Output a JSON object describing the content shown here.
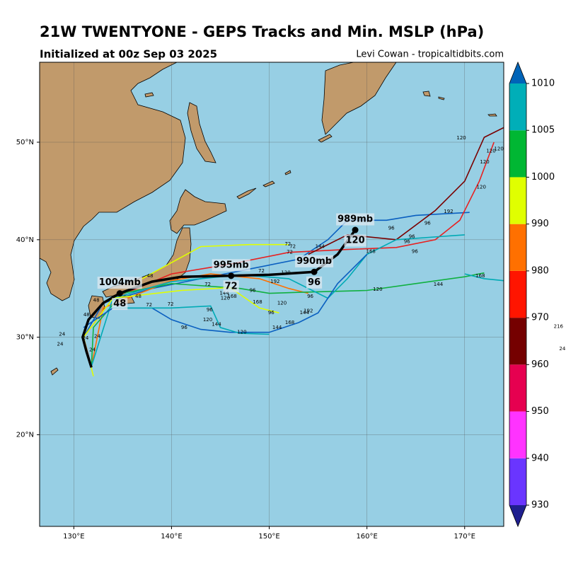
{
  "title": "21W TWENTYONE - GEPS Tracks and Min. MSLP (hPa)",
  "subtitle": "Initialized at 00z Sep 03 2025",
  "credit": "Levi Cowan - tropicaltidbits.com",
  "map": {
    "lonlim": [
      126.5,
      174
    ],
    "latlim": [
      10.6,
      58.2
    ],
    "lonticks": [
      {
        "value": 130,
        "label": "130°E"
      },
      {
        "value": 140,
        "label": "140°E"
      },
      {
        "value": 150,
        "label": "150°E"
      },
      {
        "value": 160,
        "label": "160°E"
      },
      {
        "value": 170,
        "label": "170°E"
      }
    ],
    "latticks": [
      {
        "value": 20,
        "label": "20°N"
      },
      {
        "value": 30,
        "label": "30°N"
      },
      {
        "value": 40,
        "label": "40°N"
      },
      {
        "value": 50,
        "label": "50°N"
      }
    ],
    "grid": true
  },
  "colorbar": {
    "levels": [
      930,
      940,
      950,
      960,
      970,
      980,
      990,
      1000,
      1005,
      1010
    ],
    "colors": [
      "#1f1f8f",
      "#6a35ff",
      "#ff33ff",
      "#e60050",
      "#750000",
      "#ff1500",
      "#ff7000",
      "#e0ff00",
      "#00b733",
      "#00aeb8",
      "#0064b8"
    ]
  },
  "ensemble_tracks": [
    {
      "color": "#0a5fc0",
      "lons": [
        131.8,
        131,
        133,
        138,
        143,
        148,
        153,
        156,
        158,
        162,
        165,
        170.5
      ],
      "lats": [
        26.8,
        30,
        33.5,
        35,
        36,
        37,
        38,
        40,
        42,
        42,
        42.5,
        42.8
      ]
    },
    {
      "color": "#e82020",
      "lons": [
        131.8,
        131,
        134,
        140,
        146,
        152,
        158,
        163,
        167,
        169.5,
        171.5,
        173
      ],
      "lats": [
        27,
        30,
        34,
        36.5,
        37.5,
        38.7,
        39,
        39.2,
        40,
        42,
        46,
        50
      ]
    },
    {
      "color": "#7a0000",
      "lons": [
        154,
        158,
        163,
        167,
        170,
        172,
        174
      ],
      "lats": [
        38.5,
        40.5,
        40,
        43,
        46,
        50.5,
        51.5
      ]
    },
    {
      "color": "#ff7000",
      "lons": [
        131.8,
        133,
        140,
        144,
        149,
        152,
        154
      ],
      "lats": [
        27,
        33,
        35.8,
        36.5,
        36,
        35,
        34.5
      ]
    },
    {
      "color": "#10b040",
      "lons": [
        131.8,
        132,
        135,
        140,
        147,
        150,
        153,
        160,
        165,
        170,
        172
      ],
      "lats": [
        27,
        31,
        34.5,
        35.5,
        35,
        34.5,
        34.6,
        34.8,
        35.5,
        36.2,
        36.6
      ]
    },
    {
      "color": "#00aab5",
      "lons": [
        131.8,
        134,
        140,
        147,
        152,
        156,
        158,
        160,
        163,
        170
      ],
      "lats": [
        27,
        34,
        35.7,
        36.4,
        36,
        34,
        36,
        38.5,
        40,
        40.5
      ]
    },
    {
      "color": "#e0ff00",
      "lons": [
        132,
        131,
        134,
        141,
        146,
        149,
        151
      ],
      "lats": [
        26,
        30,
        34,
        34.8,
        35.1,
        33,
        32.5
      ]
    },
    {
      "color": "#e0ff00",
      "lons": [
        137,
        143,
        148,
        152
      ],
      "lats": [
        36,
        39.3,
        39.5,
        39.5
      ]
    },
    {
      "color": "#0a5fc0",
      "lons": [
        131,
        134,
        138,
        140,
        143,
        146,
        150,
        153,
        155,
        157,
        160
      ],
      "lats": [
        31,
        33,
        33,
        31.8,
        30.8,
        30.5,
        30.5,
        31.5,
        32.5,
        35.5,
        38.5
      ]
    },
    {
      "color": "#00aab5",
      "lons": [
        134,
        140,
        144,
        145,
        147,
        150
      ],
      "lats": [
        33,
        33,
        33.2,
        31,
        30.4,
        30.3
      ]
    },
    {
      "color": "#00aab5",
      "lons": [
        170,
        172,
        174
      ],
      "lats": [
        36.5,
        36,
        35.8
      ]
    }
  ],
  "track_labels": [
    {
      "text": "120",
      "lon": 169.66,
      "lat": 50.43
    },
    {
      "text": "120",
      "lon": 172.7,
      "lat": 49.1
    },
    {
      "text": "120",
      "lon": 173.5,
      "lat": 49.3
    },
    {
      "text": "120",
      "lon": 172.05,
      "lat": 47.97
    },
    {
      "text": "120",
      "lon": 171.7,
      "lat": 45.4
    },
    {
      "text": "192",
      "lon": 168.35,
      "lat": 42.9
    },
    {
      "text": "96",
      "lon": 166.2,
      "lat": 41.7
    },
    {
      "text": "96",
      "lon": 162.5,
      "lat": 41.2
    },
    {
      "text": "96",
      "lon": 164.6,
      "lat": 40.3
    },
    {
      "text": "96",
      "lon": 164.1,
      "lat": 39.8
    },
    {
      "text": "96",
      "lon": 164.9,
      "lat": 38.8
    },
    {
      "text": "168",
      "lon": 160.4,
      "lat": 38.8
    },
    {
      "text": "144",
      "lon": 155.2,
      "lat": 39.3
    },
    {
      "text": "72",
      "lon": 151.9,
      "lat": 39.55
    },
    {
      "text": "72",
      "lon": 152.1,
      "lat": 38.7
    },
    {
      "text": "72",
      "lon": 152.4,
      "lat": 39.3
    },
    {
      "text": "120",
      "lon": 151.7,
      "lat": 36.6
    },
    {
      "text": "192",
      "lon": 150.6,
      "lat": 35.7
    },
    {
      "text": "72",
      "lon": 149.2,
      "lat": 36.8
    },
    {
      "text": "72",
      "lon": 143.7,
      "lat": 35.4
    },
    {
      "text": "144",
      "lon": 145.4,
      "lat": 34.5
    },
    {
      "text": "168",
      "lon": 146.2,
      "lat": 34.2
    },
    {
      "text": "120",
      "lon": 145.5,
      "lat": 34.0
    },
    {
      "text": "96",
      "lon": 148.3,
      "lat": 34.8
    },
    {
      "text": "168",
      "lon": 148.8,
      "lat": 33.6
    },
    {
      "text": "120",
      "lon": 151.3,
      "lat": 33.5
    },
    {
      "text": "96",
      "lon": 150.2,
      "lat": 32.5
    },
    {
      "text": "144",
      "lon": 153.6,
      "lat": 32.5
    },
    {
      "text": "192",
      "lon": 154.0,
      "lat": 32.7
    },
    {
      "text": "168",
      "lon": 152.1,
      "lat": 31.5
    },
    {
      "text": "144",
      "lon": 150.8,
      "lat": 31.0
    },
    {
      "text": "120",
      "lon": 147.2,
      "lat": 30.5
    },
    {
      "text": "144",
      "lon": 144.6,
      "lat": 31.3
    },
    {
      "text": "120",
      "lon": 143.7,
      "lat": 31.8
    },
    {
      "text": "96",
      "lon": 143.9,
      "lat": 32.8
    },
    {
      "text": "96",
      "lon": 141.3,
      "lat": 31.0
    },
    {
      "text": "72",
      "lon": 139.9,
      "lat": 33.4
    },
    {
      "text": "72",
      "lon": 137.7,
      "lat": 33.3
    },
    {
      "text": "96",
      "lon": 154.2,
      "lat": 34.2
    },
    {
      "text": "120",
      "lon": 161.1,
      "lat": 34.9
    },
    {
      "text": "144",
      "lon": 167.3,
      "lat": 35.4
    },
    {
      "text": "168",
      "lon": 171.6,
      "lat": 36.3
    },
    {
      "text": "48",
      "lon": 137.8,
      "lat": 36.3
    },
    {
      "text": "48",
      "lon": 132.3,
      "lat": 33.8
    },
    {
      "text": "48",
      "lon": 136.6,
      "lat": 34.2
    },
    {
      "text": "24",
      "lon": 128.8,
      "lat": 30.3
    },
    {
      "text": "24",
      "lon": 128.6,
      "lat": 29.3
    },
    {
      "text": "24",
      "lon": 131.9,
      "lat": 28.7
    },
    {
      "text": "24",
      "lon": 132.4,
      "lat": 30.1
    },
    {
      "text": "48",
      "lon": 131.3,
      "lat": 32.3
    },
    {
      "text": "24",
      "lon": 131.2,
      "lat": 29.9
    },
    {
      "text": "216",
      "lon": 179.6,
      "lat": 31.1
    },
    {
      "text": "24",
      "lon": 180.0,
      "lat": 28.8
    }
  ],
  "mean_track": {
    "lons": [
      131.8,
      131.3,
      130.9,
      131.5,
      133,
      134.7,
      138,
      141,
      146.1,
      150,
      154.6,
      157,
      158.8
    ],
    "lats": [
      26.9,
      28.5,
      30,
      31.8,
      33.5,
      34.5,
      35.7,
      36.2,
      36.3,
      36.4,
      36.7,
      38.5,
      41
    ],
    "points": [
      {
        "lon": 134.7,
        "lat": 34.5,
        "pressure": "1004mb",
        "hour": "48"
      },
      {
        "lon": 146.1,
        "lat": 36.3,
        "pressure": "995mb",
        "hour": "72"
      },
      {
        "lon": 154.6,
        "lat": 36.7,
        "pressure": "990mb",
        "hour": "96"
      },
      {
        "lon": 158.8,
        "lat": 41,
        "pressure": "989mb",
        "hour": "120"
      }
    ]
  }
}
